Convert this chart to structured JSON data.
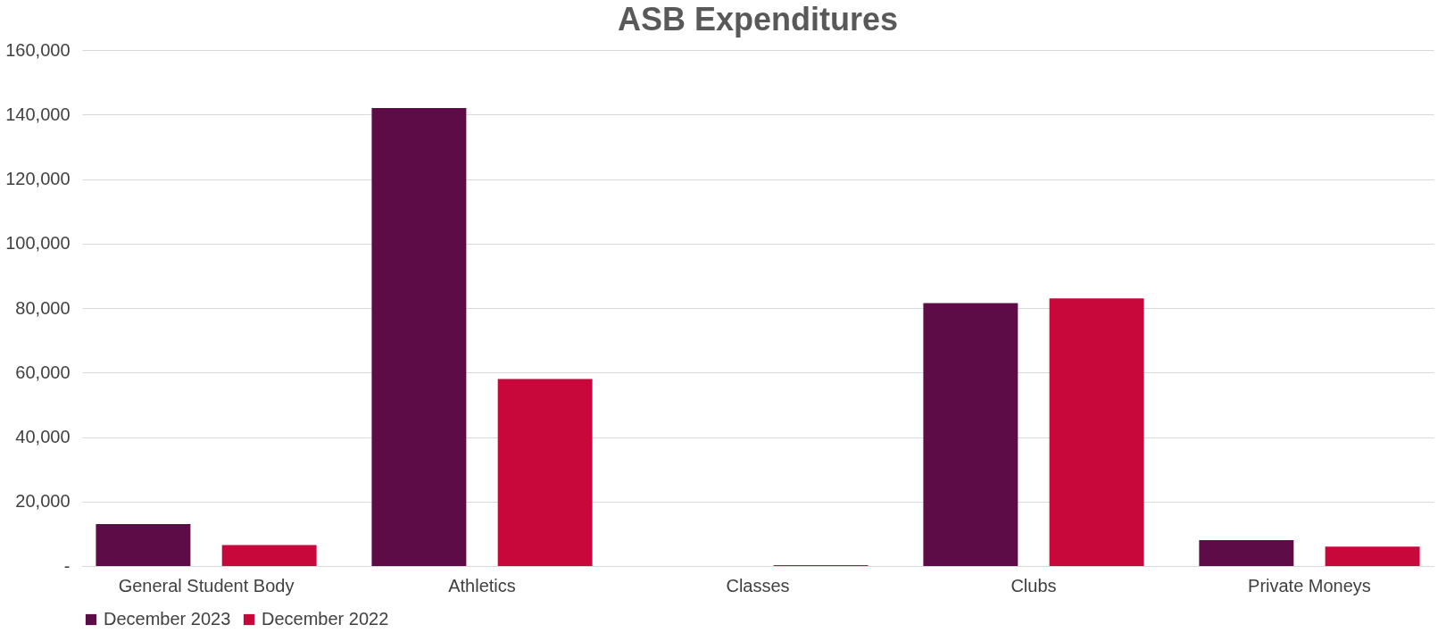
{
  "chart_data": {
    "type": "bar",
    "title": "ASB Expenditures",
    "categories": [
      "General Student Body",
      "Athletics",
      "Classes",
      "Clubs",
      "Private Moneys"
    ],
    "series": [
      {
        "name": "December 2023",
        "color": "#5e0c48",
        "values": [
          13000,
          142000,
          null,
          81500,
          8000
        ]
      },
      {
        "name": "December 2022",
        "color": "#c8073a",
        "values": [
          6500,
          58000,
          300,
          83000,
          6000
        ]
      }
    ],
    "ylim": [
      0,
      160000
    ],
    "yticks": [
      {
        "value": 0,
        "label": "-"
      },
      {
        "value": 20000,
        "label": "20,000"
      },
      {
        "value": 40000,
        "label": "40,000"
      },
      {
        "value": 60000,
        "label": "60,000"
      },
      {
        "value": 80000,
        "label": "80,000"
      },
      {
        "value": 100000,
        "label": "100,000"
      },
      {
        "value": 120000,
        "label": "120,000"
      },
      {
        "value": 140000,
        "label": "140,000"
      },
      {
        "value": 160000,
        "label": "160,000"
      }
    ],
    "grid": "y",
    "legend": "bottom"
  }
}
